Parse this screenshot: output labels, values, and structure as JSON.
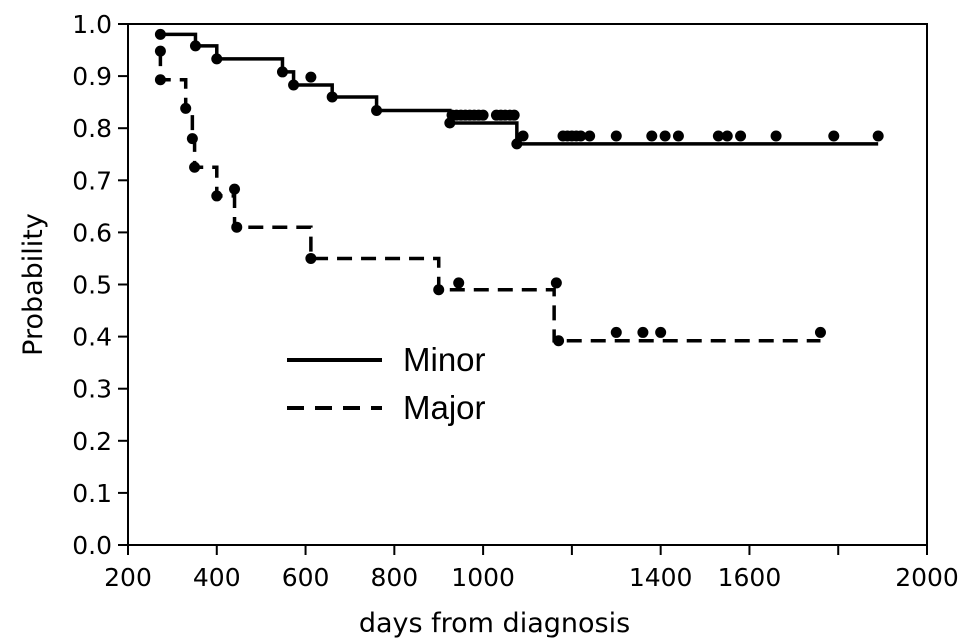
{
  "chart_data": {
    "type": "line",
    "chart_style": "kaplan-meier step curves with censoring markers",
    "xlabel": "days from diagnosis",
    "ylabel": "Probability",
    "xlim": [
      200,
      2000
    ],
    "ylim": [
      0.0,
      1.0
    ],
    "x_ticks": [
      200,
      400,
      600,
      800,
      1000,
      1200,
      1400,
      1600,
      1800,
      2000
    ],
    "x_tick_labels": [
      "200",
      "400",
      "600",
      "800",
      "1000",
      "",
      "1400",
      "1600",
      "",
      "2000"
    ],
    "y_ticks": [
      0.0,
      0.1,
      0.2,
      0.3,
      0.4,
      0.5,
      0.6,
      0.7,
      0.8,
      0.9,
      1.0
    ],
    "y_tick_labels": [
      "0.0",
      "0.1",
      "0.2",
      "0.3",
      "0.4",
      "0.5",
      "0.6",
      "0.7",
      "0.8",
      "0.9",
      "1.0"
    ],
    "grid": false,
    "legend_position": "center-left",
    "series": [
      {
        "name": "Minor",
        "line_style": "solid",
        "color": "#000000",
        "step_x": [
          273,
          352,
          400,
          548,
          573,
          660,
          760,
          925,
          1076,
          1890
        ],
        "step_y": [
          0.98,
          0.958,
          0.933,
          0.908,
          0.883,
          0.86,
          0.834,
          0.81,
          0.77,
          0.77
        ],
        "censor_x": [
          273,
          352,
          400,
          548,
          573,
          612,
          660,
          760,
          925,
          930,
          940,
          950,
          960,
          970,
          980,
          990,
          1000,
          1030,
          1040,
          1050,
          1060,
          1070,
          1076,
          1090,
          1180,
          1190,
          1200,
          1210,
          1220,
          1240,
          1300,
          1380,
          1410,
          1440,
          1530,
          1550,
          1580,
          1660,
          1790,
          1890
        ],
        "censor_y": [
          0.98,
          0.958,
          0.933,
          0.908,
          0.883,
          0.898,
          0.86,
          0.834,
          0.81,
          0.825,
          0.825,
          0.825,
          0.825,
          0.825,
          0.825,
          0.825,
          0.825,
          0.825,
          0.825,
          0.825,
          0.825,
          0.825,
          0.77,
          0.785,
          0.785,
          0.785,
          0.785,
          0.785,
          0.785,
          0.785,
          0.785,
          0.785,
          0.785,
          0.785,
          0.785,
          0.785,
          0.785,
          0.785,
          0.785,
          0.785
        ]
      },
      {
        "name": "Major",
        "line_style": "dashed",
        "color": "#000000",
        "step_x": [
          273,
          273,
          330,
          345,
          350,
          400,
          440,
          445,
          612,
          900,
          1160,
          1170,
          1760
        ],
        "step_y": [
          0.948,
          0.893,
          0.838,
          0.78,
          0.725,
          0.67,
          0.61,
          0.61,
          0.55,
          0.49,
          0.392,
          0.392,
          0.392
        ],
        "censor_x": [
          273,
          273,
          330,
          345,
          350,
          400,
          440,
          445,
          612,
          900,
          945,
          1165,
          1170,
          1300,
          1360,
          1400,
          1760
        ],
        "censor_y": [
          0.948,
          0.893,
          0.838,
          0.78,
          0.725,
          0.67,
          0.683,
          0.61,
          0.55,
          0.49,
          0.503,
          0.503,
          0.392,
          0.408,
          0.408,
          0.408,
          0.408
        ]
      }
    ]
  }
}
